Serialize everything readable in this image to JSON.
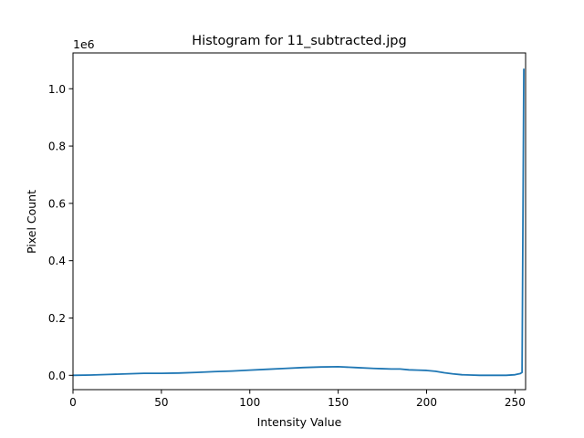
{
  "chart_data": {
    "type": "line",
    "title": "Histogram for 11_subtracted.jpg",
    "xlabel": "Intensity Value",
    "ylabel": "Pixel Count",
    "y_multiplier_label": "1e6",
    "xlim": [
      0,
      256
    ],
    "ylim": [
      -0.05,
      1.125
    ],
    "x_ticks": [
      0,
      50,
      100,
      150,
      200,
      250
    ],
    "y_ticks": [
      0.0,
      0.2,
      0.4,
      0.6,
      0.8,
      1.0
    ],
    "x_tick_labels": [
      "0",
      "50",
      "100",
      "150",
      "200",
      "250"
    ],
    "y_tick_labels": [
      "0.0",
      "0.2",
      "0.4",
      "0.6",
      "0.8",
      "1.0"
    ],
    "grid": false,
    "series_color": "#1f77b4",
    "series": [
      {
        "x": [
          0,
          10,
          20,
          30,
          40,
          50,
          60,
          70,
          80,
          90,
          100,
          110,
          120,
          130,
          140,
          150,
          160,
          170,
          175,
          180,
          185,
          190,
          195,
          200,
          205,
          210,
          215,
          220,
          225,
          230,
          240,
          245,
          250,
          253,
          254,
          255
        ],
        "values": [
          0.0,
          0.001,
          0.003,
          0.005,
          0.007,
          0.007,
          0.008,
          0.01,
          0.013,
          0.015,
          0.018,
          0.021,
          0.024,
          0.027,
          0.029,
          0.03,
          0.027,
          0.024,
          0.023,
          0.022,
          0.022,
          0.019,
          0.018,
          0.017,
          0.014,
          0.009,
          0.005,
          0.002,
          0.001,
          0.0,
          0.0,
          0.0,
          0.002,
          0.006,
          0.01,
          1.07
        ]
      }
    ]
  }
}
